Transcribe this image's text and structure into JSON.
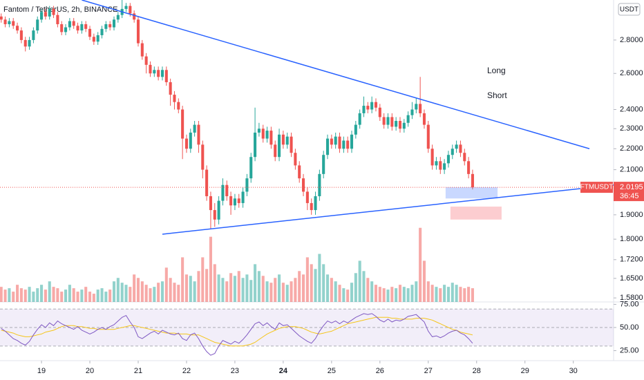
{
  "chart_data": {
    "type": "candlestick",
    "title": "Fantom / TetherUS, 2h, BINANCE",
    "symbol": "FTMUSDT",
    "currency": "USDT",
    "countdown": "36:45",
    "log_scale": true,
    "up_color": "#26a69a",
    "down_color": "#ef5350",
    "xlim": [
      -0.3,
      152
    ],
    "xticks": [
      {
        "value": 10,
        "label": "19"
      },
      {
        "value": 22,
        "label": "20"
      },
      {
        "value": 34,
        "label": "21"
      },
      {
        "value": 46,
        "label": "22"
      },
      {
        "value": 58,
        "label": "23"
      },
      {
        "value": 70,
        "label": "24",
        "bold": true
      },
      {
        "value": 82,
        "label": "25"
      },
      {
        "value": 94,
        "label": "26"
      },
      {
        "value": 106,
        "label": "27"
      },
      {
        "value": 118,
        "label": "28"
      },
      {
        "value": 130,
        "label": "29"
      },
      {
        "value": 142,
        "label": "30"
      }
    ],
    "ylim": [
      1.566,
      3.06
    ],
    "yticks": [
      {
        "value": 2.8,
        "label": "2.8000"
      },
      {
        "value": 2.6,
        "label": "2.6000"
      },
      {
        "value": 2.4,
        "label": "2.4000"
      },
      {
        "value": 2.3,
        "label": "2.3000"
      },
      {
        "value": 2.2,
        "label": "2.2000"
      },
      {
        "value": 2.1,
        "label": "2.1000"
      },
      {
        "value": 1.9,
        "label": "1.9000"
      },
      {
        "value": 1.8,
        "label": "1.8000"
      },
      {
        "value": 1.72,
        "label": "1.7200"
      },
      {
        "value": 1.65,
        "label": "1.6500"
      },
      {
        "value": 1.58,
        "label": "1.5800"
      }
    ],
    "ohlc": [
      [
        2.95,
        2.97,
        2.91,
        2.93
      ],
      [
        2.93,
        2.95,
        2.88,
        2.9
      ],
      [
        2.9,
        2.94,
        2.88,
        2.92
      ],
      [
        2.92,
        2.94,
        2.87,
        2.89
      ],
      [
        2.89,
        2.91,
        2.84,
        2.86
      ],
      [
        2.86,
        2.88,
        2.78,
        2.8
      ],
      [
        2.8,
        2.82,
        2.73,
        2.76
      ],
      [
        2.76,
        2.82,
        2.74,
        2.8
      ],
      [
        2.8,
        2.88,
        2.78,
        2.86
      ],
      [
        2.86,
        2.95,
        2.84,
        2.93
      ],
      [
        2.93,
        3.0,
        2.91,
        2.98
      ],
      [
        2.98,
        3.0,
        2.93,
        2.95
      ],
      [
        2.95,
        3.02,
        2.93,
        3.0
      ],
      [
        3.0,
        3.02,
        2.94,
        2.96
      ],
      [
        2.96,
        2.98,
        2.88,
        2.9
      ],
      [
        2.9,
        2.92,
        2.83,
        2.85
      ],
      [
        2.85,
        2.9,
        2.83,
        2.88
      ],
      [
        2.88,
        2.94,
        2.86,
        2.92
      ],
      [
        2.92,
        2.94,
        2.87,
        2.89
      ],
      [
        2.89,
        2.91,
        2.84,
        2.86
      ],
      [
        2.86,
        2.92,
        2.84,
        2.9
      ],
      [
        2.9,
        2.92,
        2.85,
        2.87
      ],
      [
        2.87,
        2.89,
        2.8,
        2.82
      ],
      [
        2.82,
        2.84,
        2.77,
        2.79
      ],
      [
        2.79,
        2.85,
        2.77,
        2.83
      ],
      [
        2.83,
        2.89,
        2.81,
        2.87
      ],
      [
        2.87,
        2.92,
        2.85,
        2.9
      ],
      [
        2.9,
        2.92,
        2.86,
        2.88
      ],
      [
        2.88,
        2.95,
        2.86,
        2.93
      ],
      [
        2.93,
        2.98,
        2.91,
        2.96
      ],
      [
        2.96,
        3.06,
        2.94,
        3.0
      ],
      [
        3.0,
        3.04,
        2.98,
        3.02
      ],
      [
        3.02,
        3.04,
        2.95,
        2.97
      ],
      [
        2.97,
        2.99,
        2.91,
        2.93
      ],
      [
        2.93,
        2.95,
        2.76,
        2.78
      ],
      [
        2.78,
        2.8,
        2.68,
        2.7
      ],
      [
        2.7,
        2.72,
        2.6,
        2.65
      ],
      [
        2.65,
        2.67,
        2.58,
        2.6
      ],
      [
        2.6,
        2.64,
        2.58,
        2.62
      ],
      [
        2.62,
        2.64,
        2.56,
        2.58
      ],
      [
        2.58,
        2.64,
        2.56,
        2.62
      ],
      [
        2.62,
        2.64,
        2.53,
        2.55
      ],
      [
        2.55,
        2.57,
        2.42,
        2.48
      ],
      [
        2.48,
        2.5,
        2.4,
        2.44
      ],
      [
        2.44,
        2.46,
        2.38,
        2.4
      ],
      [
        2.4,
        2.42,
        2.15,
        2.25
      ],
      [
        2.25,
        2.27,
        2.18,
        2.2
      ],
      [
        2.2,
        2.3,
        2.18,
        2.28
      ],
      [
        2.28,
        2.34,
        2.26,
        2.32
      ],
      [
        2.32,
        2.34,
        2.18,
        2.22
      ],
      [
        2.22,
        2.24,
        2.06,
        2.1
      ],
      [
        2.1,
        2.12,
        1.96,
        1.98
      ],
      [
        1.98,
        2.0,
        1.84,
        1.92
      ],
      [
        1.92,
        1.95,
        1.85,
        1.88
      ],
      [
        1.88,
        1.98,
        1.86,
        1.96
      ],
      [
        1.96,
        2.06,
        1.94,
        2.03
      ],
      [
        2.03,
        2.05,
        1.96,
        1.98
      ],
      [
        1.98,
        2.0,
        1.9,
        1.94
      ],
      [
        1.94,
        1.99,
        1.92,
        1.97
      ],
      [
        1.97,
        1.99,
        1.93,
        1.95
      ],
      [
        1.95,
        2.02,
        1.93,
        2.0
      ],
      [
        2.0,
        2.08,
        1.98,
        2.06
      ],
      [
        2.06,
        2.18,
        2.04,
        2.16
      ],
      [
        2.16,
        2.41,
        2.14,
        2.28
      ],
      [
        2.28,
        2.33,
        2.26,
        2.3
      ],
      [
        2.3,
        2.32,
        2.23,
        2.25
      ],
      [
        2.25,
        2.31,
        2.23,
        2.29
      ],
      [
        2.29,
        2.31,
        2.2,
        2.22
      ],
      [
        2.22,
        2.24,
        2.14,
        2.16
      ],
      [
        2.16,
        2.3,
        2.14,
        2.27
      ],
      [
        2.27,
        2.29,
        2.2,
        2.22
      ],
      [
        2.22,
        2.28,
        2.2,
        2.26
      ],
      [
        2.26,
        2.28,
        2.16,
        2.18
      ],
      [
        2.18,
        2.2,
        2.1,
        2.12
      ],
      [
        2.12,
        2.14,
        2.04,
        2.06
      ],
      [
        2.06,
        2.08,
        1.98,
        2.0
      ],
      [
        2.0,
        2.02,
        1.92,
        1.95
      ],
      [
        1.95,
        1.97,
        1.9,
        1.92
      ],
      [
        1.92,
        2.0,
        1.9,
        1.98
      ],
      [
        1.98,
        2.1,
        1.96,
        2.08
      ],
      [
        2.08,
        2.19,
        2.06,
        2.17
      ],
      [
        2.17,
        2.27,
        2.15,
        2.25
      ],
      [
        2.25,
        2.27,
        2.2,
        2.22
      ],
      [
        2.22,
        2.28,
        2.2,
        2.26
      ],
      [
        2.26,
        2.28,
        2.18,
        2.2
      ],
      [
        2.2,
        2.26,
        2.18,
        2.24
      ],
      [
        2.24,
        2.26,
        2.18,
        2.2
      ],
      [
        2.2,
        2.29,
        2.18,
        2.27
      ],
      [
        2.27,
        2.34,
        2.25,
        2.32
      ],
      [
        2.32,
        2.4,
        2.3,
        2.38
      ],
      [
        2.38,
        2.47,
        2.36,
        2.42
      ],
      [
        2.42,
        2.44,
        2.38,
        2.4
      ],
      [
        2.4,
        2.47,
        2.38,
        2.44
      ],
      [
        2.44,
        2.46,
        2.39,
        2.41
      ],
      [
        2.41,
        2.43,
        2.34,
        2.36
      ],
      [
        2.36,
        2.38,
        2.3,
        2.32
      ],
      [
        2.32,
        2.38,
        2.3,
        2.36
      ],
      [
        2.36,
        2.38,
        2.29,
        2.31
      ],
      [
        2.31,
        2.36,
        2.29,
        2.34
      ],
      [
        2.34,
        2.36,
        2.28,
        2.3
      ],
      [
        2.3,
        2.35,
        2.28,
        2.33
      ],
      [
        2.33,
        2.39,
        2.31,
        2.37
      ],
      [
        2.37,
        2.44,
        2.35,
        2.4
      ],
      [
        2.4,
        2.46,
        2.38,
        2.43
      ],
      [
        2.43,
        2.58,
        2.36,
        2.38
      ],
      [
        2.38,
        2.4,
        2.3,
        2.32
      ],
      [
        2.32,
        2.34,
        2.18,
        2.2
      ],
      [
        2.2,
        2.22,
        2.1,
        2.12
      ],
      [
        2.12,
        2.16,
        2.1,
        2.14
      ],
      [
        2.14,
        2.16,
        2.08,
        2.1
      ],
      [
        2.1,
        2.15,
        2.08,
        2.13
      ],
      [
        2.13,
        2.19,
        2.11,
        2.17
      ],
      [
        2.17,
        2.22,
        2.15,
        2.2
      ],
      [
        2.2,
        2.24,
        2.18,
        2.22
      ],
      [
        2.22,
        2.24,
        2.16,
        2.18
      ],
      [
        2.18,
        2.2,
        2.12,
        2.14
      ],
      [
        2.14,
        2.16,
        2.06,
        2.08
      ],
      [
        2.08,
        2.1,
        2.01,
        2.0195
      ]
    ],
    "volume_ylim": [
      0,
      440
    ],
    "volume": [
      22,
      18,
      20,
      15,
      25,
      20,
      18,
      22,
      15,
      20,
      25,
      18,
      30,
      22,
      20,
      15,
      18,
      25,
      20,
      15,
      18,
      22,
      15,
      12,
      18,
      20,
      15,
      18,
      30,
      35,
      28,
      25,
      22,
      40,
      35,
      30,
      25,
      20,
      22,
      28,
      30,
      50,
      35,
      28,
      25,
      65,
      40,
      38,
      30,
      45,
      65,
      48,
      95,
      55,
      40,
      35,
      30,
      42,
      38,
      45,
      35,
      40,
      32,
      55,
      45,
      38,
      30,
      28,
      35,
      40,
      28,
      25,
      30,
      35,
      45,
      40,
      65,
      55,
      48,
      70,
      55,
      40,
      35,
      30,
      25,
      20,
      18,
      28,
      42,
      60,
      45,
      35,
      30,
      25,
      22,
      20,
      18,
      22,
      20,
      25,
      22,
      20,
      25,
      30,
      108,
      60,
      30,
      25,
      22,
      20,
      25,
      22,
      28,
      25,
      22,
      20,
      22,
      20
    ],
    "trendlines": [
      {
        "color": "#2962ff",
        "points": [
          [
            20,
            3.06
          ],
          [
            146,
            2.2
          ]
        ]
      },
      {
        "color": "#2962ff",
        "points": [
          [
            40,
            1.82
          ],
          [
            152,
            2.03
          ]
        ]
      }
    ],
    "annotations": [
      {
        "text": "Long",
        "color": "#2962ff"
      },
      {
        "text": "Short",
        "color": "#f23645"
      }
    ],
    "zones": [
      {
        "color": "rgba(41,98,255,0.25)",
        "x": [
          110.3,
          123.2
        ],
        "y": [
          1.97,
          2.02
        ]
      },
      {
        "color": "rgba(242,54,69,0.25)",
        "x": [
          111.5,
          124.2
        ],
        "y": [
          1.88,
          1.935
        ]
      }
    ],
    "rsi": {
      "color": "#7e57c2",
      "ma_color": "#f5c518",
      "ylim": [
        15.7,
        77.6
      ],
      "yticks": [
        {
          "value": 75,
          "label": "75.00"
        },
        {
          "value": 50,
          "label": "50.00"
        },
        {
          "value": 25,
          "label": "25.00"
        }
      ],
      "levels": [
        70,
        50,
        30
      ],
      "values": [
        49,
        46,
        42,
        38,
        36,
        33,
        31,
        35,
        42,
        48,
        53,
        50,
        55,
        52,
        57,
        54,
        52,
        50,
        48,
        51,
        47,
        45,
        43,
        45,
        48,
        50,
        48,
        51,
        53,
        57,
        61,
        63,
        56,
        50,
        40,
        38,
        41,
        44,
        46,
        43,
        47,
        45,
        43,
        42,
        44,
        38,
        36,
        42,
        44,
        38,
        30,
        24,
        20,
        22,
        30,
        36,
        34,
        32,
        35,
        33,
        37,
        42,
        48,
        54,
        56,
        52,
        55,
        51,
        48,
        55,
        52,
        53,
        49,
        45,
        41,
        38,
        35,
        33,
        38,
        46,
        52,
        57,
        55,
        57,
        54,
        57,
        55,
        58,
        61,
        63,
        65,
        64,
        65,
        62,
        58,
        56,
        59,
        56,
        58,
        57,
        59,
        62,
        63,
        64,
        60,
        56,
        46,
        40,
        41,
        39,
        41,
        44,
        46,
        47,
        44,
        42,
        38,
        33
      ],
      "ma": [
        47,
        46,
        45,
        44,
        42,
        41,
        40,
        40,
        41,
        42,
        43,
        45,
        46,
        47,
        49,
        51,
        52,
        52,
        52,
        51,
        51,
        50,
        49,
        49,
        48,
        48,
        48,
        48,
        48,
        49,
        50,
        51,
        52,
        52,
        51,
        50,
        49,
        48,
        47,
        46,
        45,
        44,
        44,
        44,
        43,
        43,
        43,
        42,
        42,
        42,
        40,
        38,
        36,
        34,
        33,
        32,
        31,
        30,
        30,
        30,
        30,
        31,
        32,
        34,
        37,
        40,
        43,
        45,
        47,
        49,
        50,
        51,
        51,
        51,
        50,
        49,
        47,
        45,
        44,
        43,
        44,
        45,
        46,
        48,
        50,
        52,
        54,
        55,
        56,
        57,
        58,
        59,
        60,
        61,
        61,
        61,
        61,
        60,
        60,
        59,
        59,
        59,
        59,
        60,
        60,
        60,
        59,
        58,
        56,
        54,
        52,
        50,
        48,
        47,
        45,
        44,
        43,
        42
      ]
    }
  }
}
